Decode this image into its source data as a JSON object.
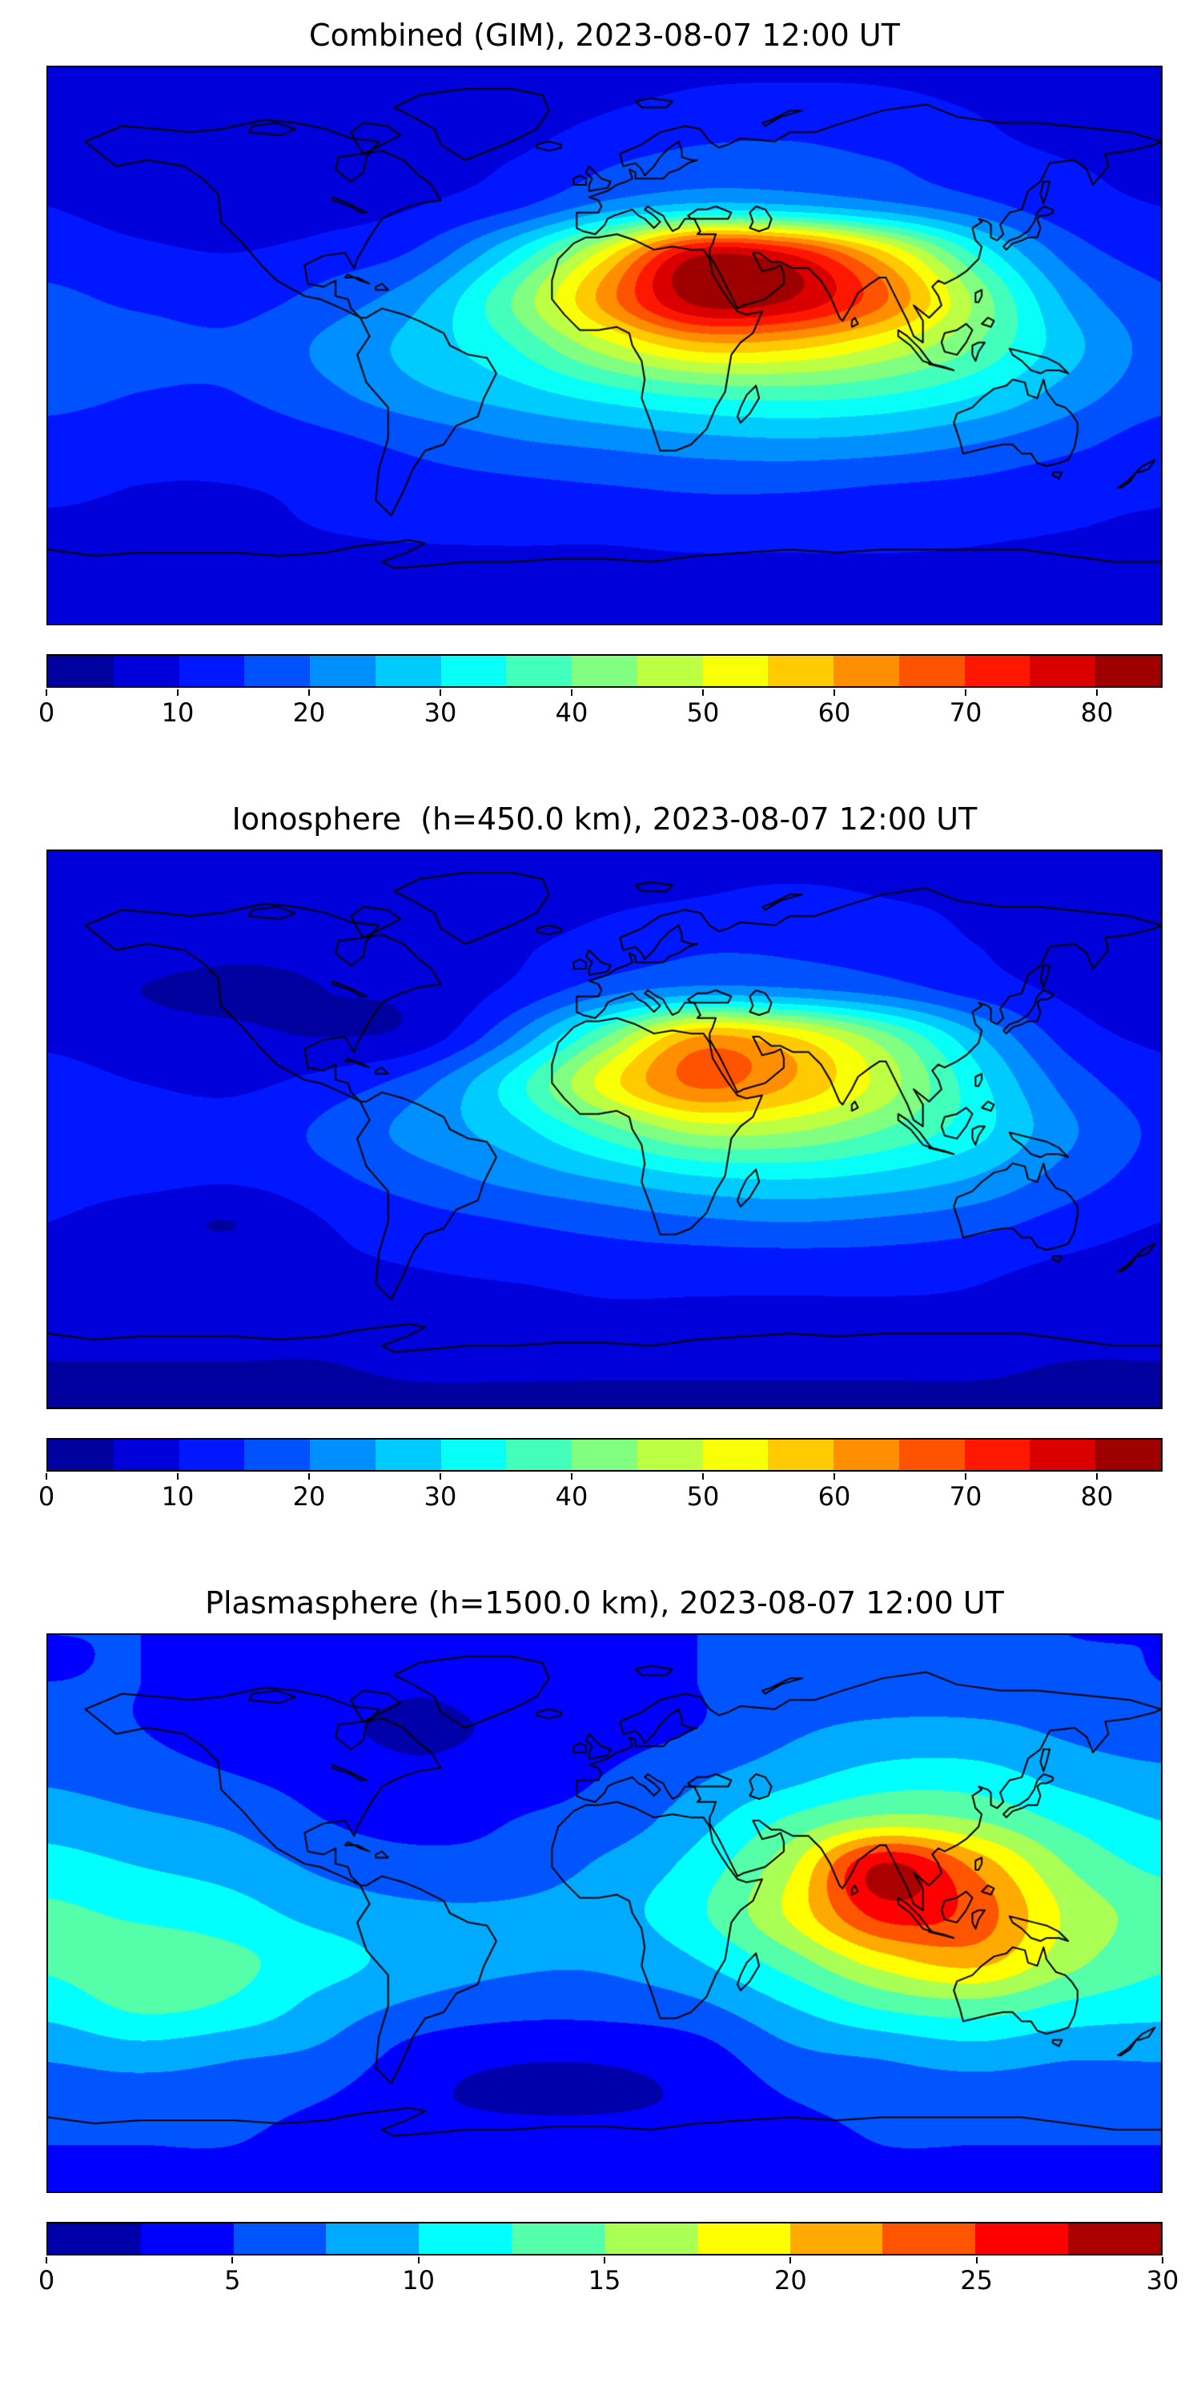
{
  "page": {
    "background": "#ffffff"
  },
  "chart_data": [
    {
      "type": "heatmap",
      "title": "Combined (GIM), 2023-08-07 12:00 UT",
      "colormap": "jet",
      "basemap": "world-coastlines",
      "projection": "equirectangular",
      "lon_range": [
        -180,
        180
      ],
      "lat_range": [
        -90,
        90
      ],
      "levels": {
        "min": 0,
        "max": 85,
        "step": 5
      },
      "colorbar_ticks": [
        0,
        10,
        20,
        30,
        40,
        50,
        60,
        70,
        80
      ],
      "lon": [
        -180,
        -150,
        -120,
        -90,
        -60,
        -30,
        0,
        30,
        60,
        90,
        120,
        150,
        180
      ],
      "lat": [
        90,
        75,
        60,
        45,
        30,
        15,
        0,
        -15,
        -30,
        -45,
        -60,
        -75,
        -90
      ],
      "values": [
        [
          7,
          7,
          7,
          7,
          7,
          7,
          8,
          9,
          9,
          9,
          8,
          7,
          7
        ],
        [
          8,
          8,
          7,
          7,
          7,
          8,
          10,
          12,
          13,
          12,
          10,
          8,
          8
        ],
        [
          9,
          8,
          7,
          7,
          8,
          10,
          14,
          17,
          17,
          15,
          12,
          10,
          9
        ],
        [
          10,
          8,
          7,
          8,
          10,
          14,
          22,
          27,
          26,
          22,
          17,
          12,
          10
        ],
        [
          13,
          11,
          10,
          12,
          16,
          30,
          52,
          78,
          74,
          56,
          34,
          18,
          13
        ],
        [
          16,
          14,
          13,
          17,
          24,
          40,
          62,
          82,
          80,
          66,
          44,
          24,
          16
        ],
        [
          18,
          17,
          16,
          21,
          27,
          35,
          48,
          58,
          57,
          50,
          40,
          27,
          18
        ],
        [
          17,
          15,
          15,
          19,
          24,
          28,
          33,
          37,
          38,
          36,
          31,
          23,
          17
        ],
        [
          13,
          12,
          12,
          14,
          17,
          20,
          22,
          24,
          25,
          24,
          21,
          17,
          13
        ],
        [
          11,
          10,
          10,
          11,
          13,
          14,
          15,
          16,
          16,
          15,
          14,
          12,
          11
        ],
        [
          9,
          9,
          9,
          10,
          11,
          11,
          11,
          12,
          12,
          12,
          11,
          10,
          9
        ],
        [
          7,
          7,
          7,
          7,
          7,
          8,
          8,
          8,
          8,
          8,
          8,
          7,
          7
        ],
        [
          6,
          6,
          6,
          6,
          6,
          6,
          6,
          6,
          6,
          6,
          6,
          6,
          6
        ]
      ]
    },
    {
      "type": "heatmap",
      "title": "Ionosphere  (h=450.0 km), 2023-08-07 12:00 UT",
      "colormap": "jet",
      "basemap": "world-coastlines",
      "projection": "equirectangular",
      "lon_range": [
        -180,
        180
      ],
      "lat_range": [
        -90,
        90
      ],
      "levels": {
        "min": 0,
        "max": 85,
        "step": 5
      },
      "colorbar_ticks": [
        0,
        10,
        20,
        30,
        40,
        50,
        60,
        70,
        80
      ],
      "lon": [
        -180,
        -150,
        -120,
        -90,
        -60,
        -30,
        0,
        30,
        60,
        90,
        120,
        150,
        180
      ],
      "lat": [
        90,
        75,
        60,
        45,
        30,
        15,
        0,
        -15,
        -30,
        -45,
        -60,
        -75,
        -90
      ],
      "values": [
        [
          6,
          6,
          6,
          6,
          6,
          6,
          7,
          8,
          8,
          8,
          7,
          6,
          6
        ],
        [
          7,
          7,
          6,
          6,
          6,
          7,
          9,
          10,
          11,
          10,
          9,
          7,
          7
        ],
        [
          8,
          7,
          6,
          6,
          7,
          9,
          12,
          14,
          14,
          13,
          10,
          8,
          8
        ],
        [
          7,
          5,
          4,
          5,
          6,
          11,
          18,
          22,
          21,
          18,
          13,
          9,
          7
        ],
        [
          9,
          7,
          6,
          5,
          7,
          20,
          40,
          60,
          55,
          42,
          26,
          13,
          9
        ],
        [
          12,
          10,
          9,
          12,
          18,
          32,
          52,
          66,
          60,
          48,
          32,
          18,
          12
        ],
        [
          14,
          13,
          12,
          16,
          22,
          28,
          38,
          47,
          46,
          40,
          32,
          21,
          14
        ],
        [
          13,
          12,
          11,
          14,
          18,
          22,
          26,
          30,
          31,
          29,
          25,
          18,
          13
        ],
        [
          10,
          7,
          5,
          10,
          13,
          15,
          17,
          19,
          20,
          19,
          17,
          13,
          10
        ],
        [
          8,
          8,
          8,
          9,
          10,
          11,
          12,
          12,
          12,
          12,
          11,
          9,
          8
        ],
        [
          7,
          7,
          7,
          7,
          8,
          8,
          9,
          9,
          9,
          9,
          9,
          8,
          7
        ],
        [
          5,
          5,
          5,
          5,
          6,
          6,
          6,
          6,
          6,
          6,
          6,
          5,
          5
        ],
        [
          4,
          4,
          4,
          4,
          4,
          4,
          4,
          4,
          4,
          4,
          4,
          4,
          4
        ]
      ]
    },
    {
      "type": "heatmap",
      "title": "Plasmasphere (h=1500.0 km), 2023-08-07 12:00 UT",
      "colormap": "jet",
      "basemap": "world-coastlines",
      "projection": "equirectangular",
      "lon_range": [
        -180,
        180
      ],
      "lat_range": [
        -90,
        90
      ],
      "levels": {
        "min": 0,
        "max": 30,
        "step": 2.5
      },
      "colorbar_ticks": [
        0,
        5,
        10,
        15,
        20,
        25,
        30
      ],
      "lon": [
        -180,
        -150,
        -120,
        -90,
        -60,
        -30,
        0,
        30,
        60,
        90,
        120,
        150,
        180
      ],
      "lat": [
        90,
        75,
        60,
        45,
        30,
        15,
        0,
        -15,
        -30,
        -45,
        -60,
        -75,
        -90
      ],
      "values": [
        [
          5,
          5,
          5,
          5,
          5,
          5,
          5,
          5,
          6,
          6,
          6,
          5,
          5
        ],
        [
          5,
          5,
          4,
          4,
          3,
          4,
          4,
          5,
          6,
          6,
          6,
          6,
          5
        ],
        [
          6,
          5,
          4,
          3,
          2,
          3,
          4,
          5,
          7,
          8,
          8,
          7,
          6
        ],
        [
          7,
          6,
          5,
          4,
          3,
          4,
          5,
          7,
          9,
          11,
          11,
          9,
          8
        ],
        [
          9,
          8,
          7,
          5,
          4,
          5,
          6,
          9,
          13,
          16,
          15,
          12,
          10
        ],
        [
          11,
          10,
          9,
          7,
          6,
          6,
          8,
          11,
          17,
          28,
          22,
          15,
          12
        ],
        [
          13,
          12,
          11,
          9,
          8,
          8,
          9,
          12,
          18,
          26,
          24,
          17,
          14
        ],
        [
          13,
          14,
          13,
          11,
          9,
          8,
          8,
          10,
          14,
          19,
          21,
          16,
          13
        ],
        [
          11,
          13,
          12,
          9,
          7,
          6,
          6,
          7,
          10,
          13,
          14,
          12,
          11
        ],
        [
          8,
          9,
          8,
          7,
          4,
          3,
          3,
          4,
          7,
          8,
          9,
          8,
          8
        ],
        [
          6,
          6,
          6,
          5,
          3,
          2,
          2,
          3,
          5,
          6,
          6,
          6,
          6
        ],
        [
          5,
          5,
          5,
          4,
          4,
          4,
          4,
          4,
          4,
          5,
          5,
          5,
          5
        ],
        [
          4,
          4,
          4,
          4,
          4,
          4,
          4,
          4,
          4,
          4,
          4,
          4,
          4
        ]
      ]
    }
  ]
}
